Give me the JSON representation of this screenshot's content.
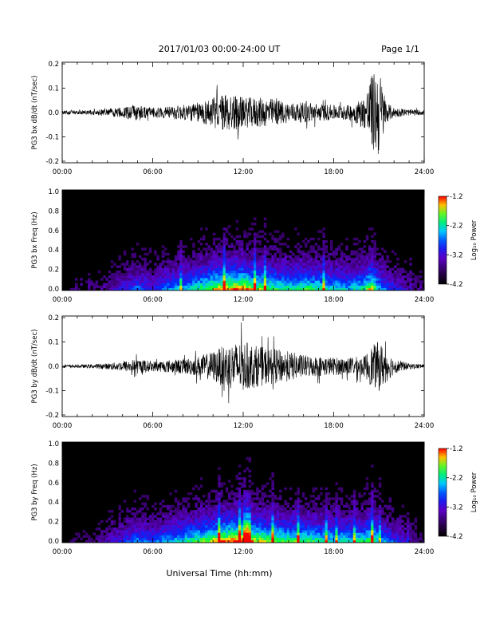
{
  "header": {
    "title": "2017/01/03  00:00-24:00 UT",
    "page": "Page 1/1"
  },
  "footer": {
    "xlabel": "Universal Time (hh:mm)"
  },
  "chart_data": [
    {
      "type": "line",
      "ylabel": "PG3 bx dB/dt (nT/sec)",
      "xticks": [
        "00:00",
        "06:00",
        "12:00",
        "18:00",
        "24:00"
      ],
      "yticks": [
        "0.2",
        "0.1",
        "0.0",
        "-0.1",
        "-0.2"
      ],
      "xlim": [
        0,
        24
      ],
      "ylim": [
        -0.2,
        0.2
      ],
      "envelope": {
        "hour": [
          0,
          1,
          2,
          3,
          4,
          4.5,
          5,
          6,
          7,
          8,
          9,
          10,
          11,
          12,
          13,
          14,
          15,
          16,
          17,
          18,
          19,
          20,
          20.5,
          21,
          21.5,
          22,
          23,
          24
        ],
        "amplitude": [
          0.008,
          0.008,
          0.01,
          0.015,
          0.02,
          0.03,
          0.035,
          0.02,
          0.025,
          0.03,
          0.04,
          0.06,
          0.08,
          0.06,
          0.06,
          0.055,
          0.04,
          0.04,
          0.035,
          0.03,
          0.03,
          0.06,
          0.15,
          0.18,
          0.04,
          0.02,
          0.012,
          0.01
        ]
      }
    },
    {
      "type": "heatmap",
      "ylabel": "PG3 bx Freq (Hz)",
      "xticks": [
        "00:00",
        "06:00",
        "12:00",
        "18:00",
        "24:00"
      ],
      "yticks": [
        "1.0",
        "0.8",
        "0.6",
        "0.4",
        "0.2",
        "0.0"
      ],
      "xlim": [
        0,
        24
      ],
      "ylim": [
        0.0,
        1.0
      ],
      "colorbar": {
        "label": "Log₁₀ Power",
        "ticks": [
          "-1.2",
          "-2.2",
          "-3.2",
          "-4.2"
        ],
        "range": [
          -4.2,
          -1.2
        ]
      },
      "activity": {
        "hour": [
          0,
          2,
          3,
          4,
          5,
          6,
          7,
          8,
          9,
          10,
          11,
          12,
          13,
          14,
          15,
          16,
          17,
          18,
          19,
          20,
          20.5,
          21,
          22,
          23,
          24
        ],
        "level": [
          0.1,
          0.15,
          0.25,
          0.35,
          0.5,
          0.4,
          0.55,
          0.6,
          0.7,
          0.85,
          0.9,
          0.95,
          0.8,
          0.75,
          0.7,
          0.75,
          0.7,
          0.65,
          0.6,
          0.7,
          0.9,
          0.6,
          0.4,
          0.25,
          0.15
        ]
      }
    },
    {
      "type": "line",
      "ylabel": "PG3 by dB/dt (nT/sec)",
      "xticks": [
        "00:00",
        "06:00",
        "12:00",
        "18:00",
        "24:00"
      ],
      "yticks": [
        "0.2",
        "0.1",
        "0.0",
        "-0.1",
        "-0.2"
      ],
      "xlim": [
        0,
        24
      ],
      "ylim": [
        -0.2,
        0.2
      ],
      "envelope": {
        "hour": [
          0,
          1,
          2,
          3,
          4,
          5,
          6,
          7,
          8,
          9,
          10,
          11,
          12,
          13,
          14,
          15,
          16,
          17,
          18,
          19,
          20,
          20.5,
          21,
          22,
          23,
          24
        ],
        "amplitude": [
          0.006,
          0.006,
          0.008,
          0.012,
          0.02,
          0.03,
          0.02,
          0.025,
          0.03,
          0.04,
          0.06,
          0.09,
          0.1,
          0.08,
          0.07,
          0.06,
          0.045,
          0.04,
          0.035,
          0.035,
          0.04,
          0.08,
          0.1,
          0.03,
          0.012,
          0.008
        ]
      }
    },
    {
      "type": "heatmap",
      "ylabel": "PG3 by Freq (Hz)",
      "xticks": [
        "00:00",
        "06:00",
        "12:00",
        "18:00",
        "24:00"
      ],
      "yticks": [
        "1.0",
        "0.8",
        "0.6",
        "0.4",
        "0.2",
        "0.0"
      ],
      "xlim": [
        0,
        24
      ],
      "ylim": [
        0.0,
        1.0
      ],
      "colorbar": {
        "label": "Log₁₀ Power",
        "ticks": [
          "-1.2",
          "-2.2",
          "-3.2",
          "-4.2"
        ],
        "range": [
          -4.2,
          -1.2
        ]
      },
      "activity": {
        "hour": [
          0,
          2,
          3,
          4,
          5,
          6,
          7,
          8,
          9,
          10,
          11,
          12,
          13,
          14,
          15,
          16,
          17,
          18,
          19,
          20,
          20.5,
          21,
          22,
          23,
          24
        ],
        "level": [
          0.1,
          0.15,
          0.3,
          0.4,
          0.55,
          0.45,
          0.6,
          0.65,
          0.75,
          0.85,
          0.95,
          1.0,
          0.85,
          0.8,
          0.75,
          0.75,
          0.7,
          0.65,
          0.65,
          0.7,
          0.85,
          0.6,
          0.45,
          0.3,
          0.15
        ]
      }
    }
  ]
}
